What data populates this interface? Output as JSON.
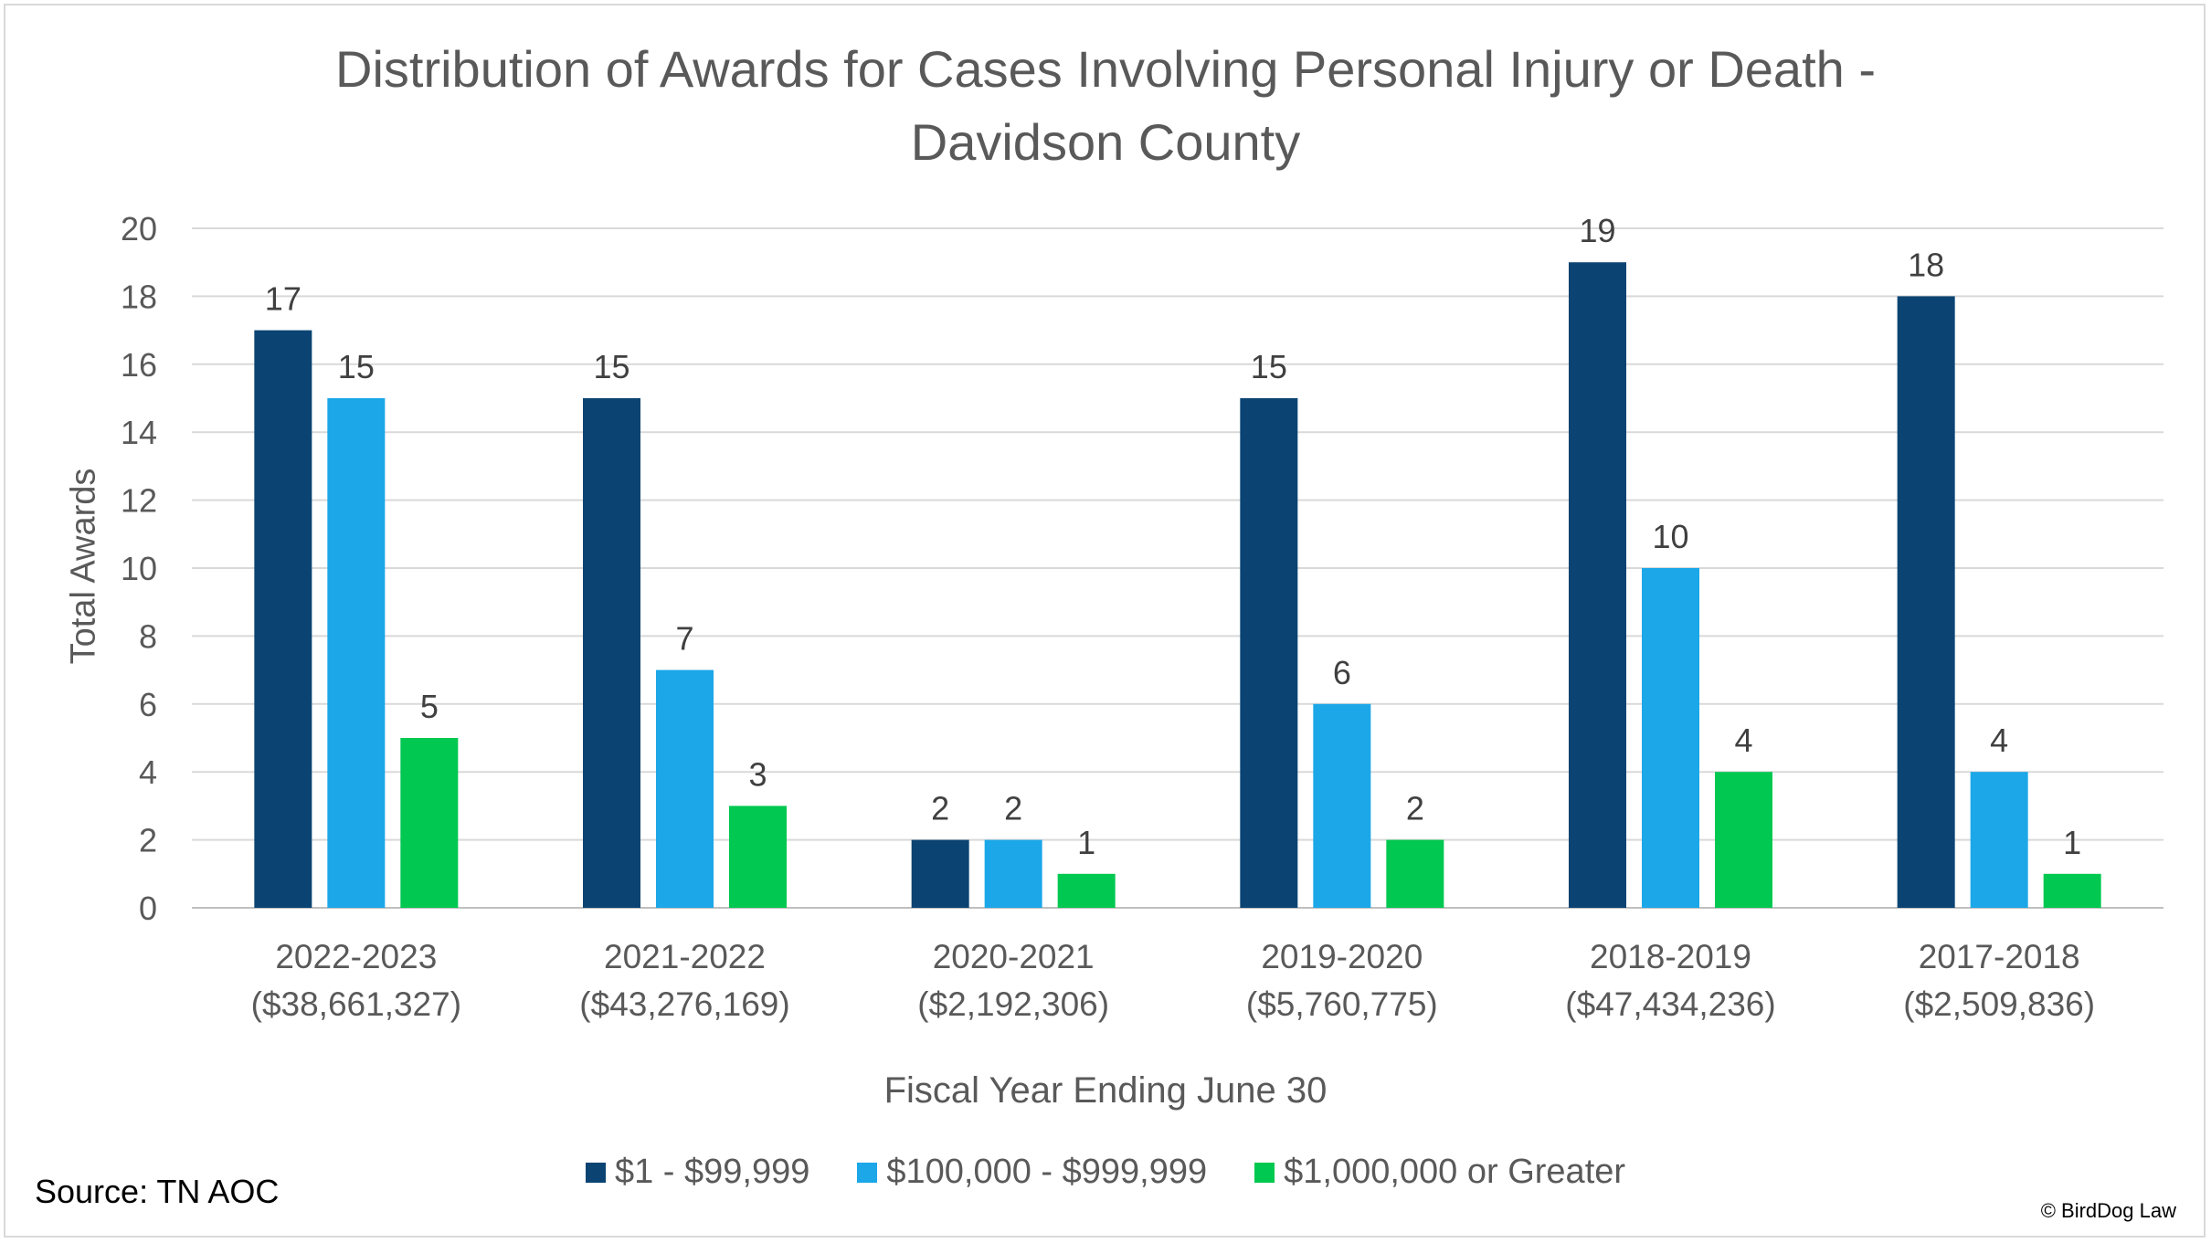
{
  "chart_data": {
    "type": "bar",
    "title_line1": "Distribution of Awards for Cases Involving Personal Injury or Death -",
    "title_line2": "Davidson County",
    "xlabel": "Fiscal Year Ending June 30",
    "ylabel": "Total Awards",
    "ylim": [
      0,
      20
    ],
    "yticks": [
      0,
      2,
      4,
      6,
      8,
      10,
      12,
      14,
      16,
      18,
      20
    ],
    "grid": true,
    "legend_position": "bottom",
    "categories": [
      {
        "year": "2022-2023",
        "amount": "($38,661,327)"
      },
      {
        "year": "2021-2022",
        "amount": "($43,276,169)"
      },
      {
        "year": "2020-2021",
        "amount": "($2,192,306)"
      },
      {
        "year": "2019-2020",
        "amount": "($5,760,775)"
      },
      {
        "year": "2018-2019",
        "amount": "($47,434,236)"
      },
      {
        "year": "2017-2018",
        "amount": "($2,509,836)"
      }
    ],
    "series": [
      {
        "name": "$1 - $99,999",
        "color": "#0b4472",
        "values": [
          17,
          15,
          2,
          15,
          19,
          18
        ]
      },
      {
        "name": "$100,000 - $999,999",
        "color": "#1ba7e8",
        "values": [
          15,
          7,
          2,
          6,
          10,
          4
        ]
      },
      {
        "name": "$1,000,000 or Greater",
        "color": "#00c850",
        "values": [
          5,
          3,
          1,
          2,
          4,
          1
        ]
      }
    ]
  },
  "source": "Source: TN AOC",
  "copyright": "© BirdDog Law"
}
